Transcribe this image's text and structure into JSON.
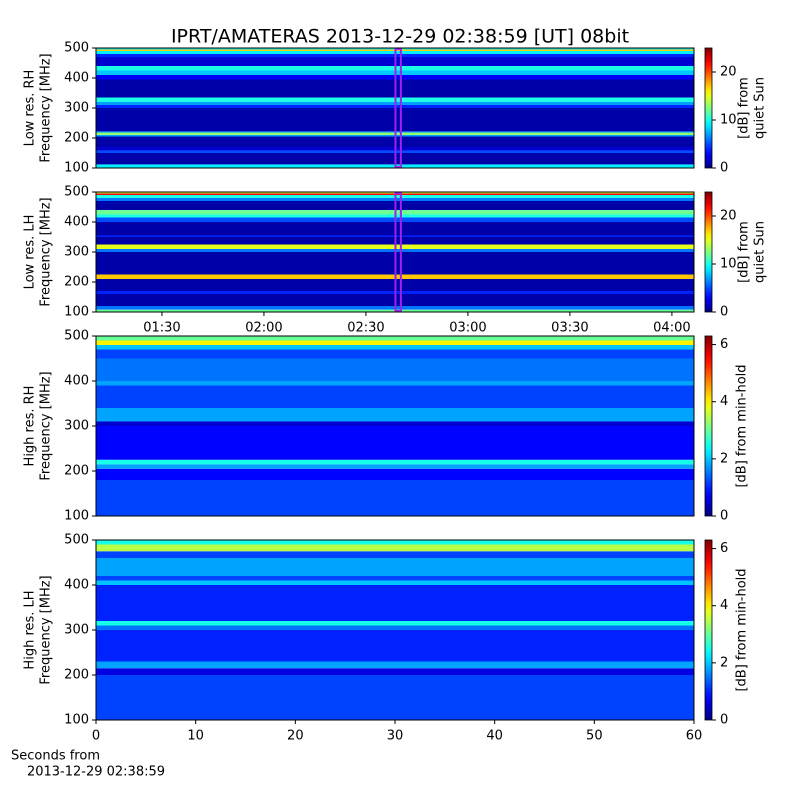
{
  "title": "IPRT/AMATERAS 2013-12-29 02:38:59 [UT]   08bit",
  "chart_data": [
    {
      "type": "heatmap",
      "ylabel": [
        "Low res. RH",
        "Frequency [MHz]"
      ],
      "colormap": "jet",
      "xlim": [
        70.6,
        246.5
      ],
      "ylim": [
        100,
        500
      ],
      "yticks": [
        100,
        200,
        300,
        400,
        500
      ],
      "y_edges": [
        100,
        112,
        150,
        158,
        170,
        205,
        210,
        218,
        222,
        300,
        310,
        320,
        335,
        395,
        410,
        425,
        440,
        470,
        480,
        490,
        495,
        500
      ],
      "z": [
        9,
        1,
        5,
        2,
        1,
        7,
        13,
        7,
        1,
        4,
        7,
        10,
        1,
        3,
        8,
        10,
        2,
        4,
        9,
        17,
        9
      ],
      "marker": [
        158.98,
        159.98
      ],
      "marker_color": "#a020f0",
      "clim": [
        0,
        25
      ],
      "cticks": [
        0,
        10,
        20
      ],
      "clabel": [
        "[dB] from",
        "quiet Sun"
      ]
    },
    {
      "type": "heatmap",
      "ylabel": [
        "Low res. LH",
        "Frequency [MHz]"
      ],
      "colormap": "jet",
      "xlim": [
        70.6,
        246.5
      ],
      "ylim": [
        100,
        500
      ],
      "yticks": [
        100,
        200,
        300,
        400,
        500
      ],
      "xticks": [
        {
          "value": 90,
          "label": "01:30"
        },
        {
          "value": 120,
          "label": "02:00"
        },
        {
          "value": 150,
          "label": "02:30"
        },
        {
          "value": 180,
          "label": "03:00"
        },
        {
          "value": 210,
          "label": "03:30"
        },
        {
          "value": 240,
          "label": "04:00"
        }
      ],
      "y_edges": [
        100,
        108,
        120,
        160,
        170,
        210,
        225,
        300,
        310,
        325,
        350,
        355,
        400,
        415,
        425,
        440,
        470,
        480,
        490,
        495,
        500
      ],
      "z": [
        12,
        6,
        1,
        4,
        1,
        17,
        1,
        6,
        15,
        1,
        4,
        1,
        5,
        10,
        12,
        1,
        6,
        10,
        22,
        14
      ],
      "marker": [
        158.98,
        159.98
      ],
      "marker_color": "#a020f0",
      "clim": [
        0,
        25
      ],
      "cticks": [
        0,
        10,
        20
      ],
      "clabel": [
        "[dB] from",
        "quiet Sun"
      ]
    },
    {
      "type": "heatmap",
      "ylabel": [
        "High res. RH",
        "Frequency [MHz]"
      ],
      "colormap": "jet",
      "xlim": [
        0,
        60
      ],
      "ylim": [
        100,
        500
      ],
      "yticks": [
        100,
        200,
        300,
        400,
        500
      ],
      "y_edges": [
        100,
        180,
        205,
        215,
        225,
        300,
        310,
        340,
        390,
        400,
        450,
        470,
        480,
        490,
        500
      ],
      "z": [
        1.2,
        0.8,
        1.8,
        2.5,
        0.8,
        0.5,
        1.8,
        1.2,
        1.8,
        1.5,
        1.2,
        2,
        4,
        3
      ],
      "clim": [
        0,
        6.3
      ],
      "cticks": [
        0,
        2,
        4,
        6
      ],
      "clabel": [
        "[dB] from min-hold"
      ]
    },
    {
      "type": "heatmap",
      "ylabel": [
        "High res. LH",
        "Frequency [MHz]"
      ],
      "colormap": "jet",
      "xlim": [
        0,
        60
      ],
      "ylim": [
        100,
        500
      ],
      "yticks": [
        100,
        200,
        300,
        400,
        500
      ],
      "xticks": [
        0,
        10,
        20,
        30,
        40,
        50,
        60
      ],
      "xlabel": [
        "Seconds from",
        "2013-12-29 02:38:59"
      ],
      "y_edges": [
        100,
        200,
        215,
        230,
        300,
        310,
        320,
        400,
        410,
        420,
        460,
        475,
        490,
        500
      ],
      "z": [
        1.2,
        0.6,
        1.8,
        1.0,
        1.5,
        2.5,
        1.0,
        2,
        1.2,
        1.8,
        1.2,
        3.5,
        2.5
      ],
      "clim": [
        0,
        6.3
      ],
      "cticks": [
        0,
        2,
        4,
        6
      ],
      "clabel": [
        "[dB] from min-hold"
      ]
    }
  ]
}
